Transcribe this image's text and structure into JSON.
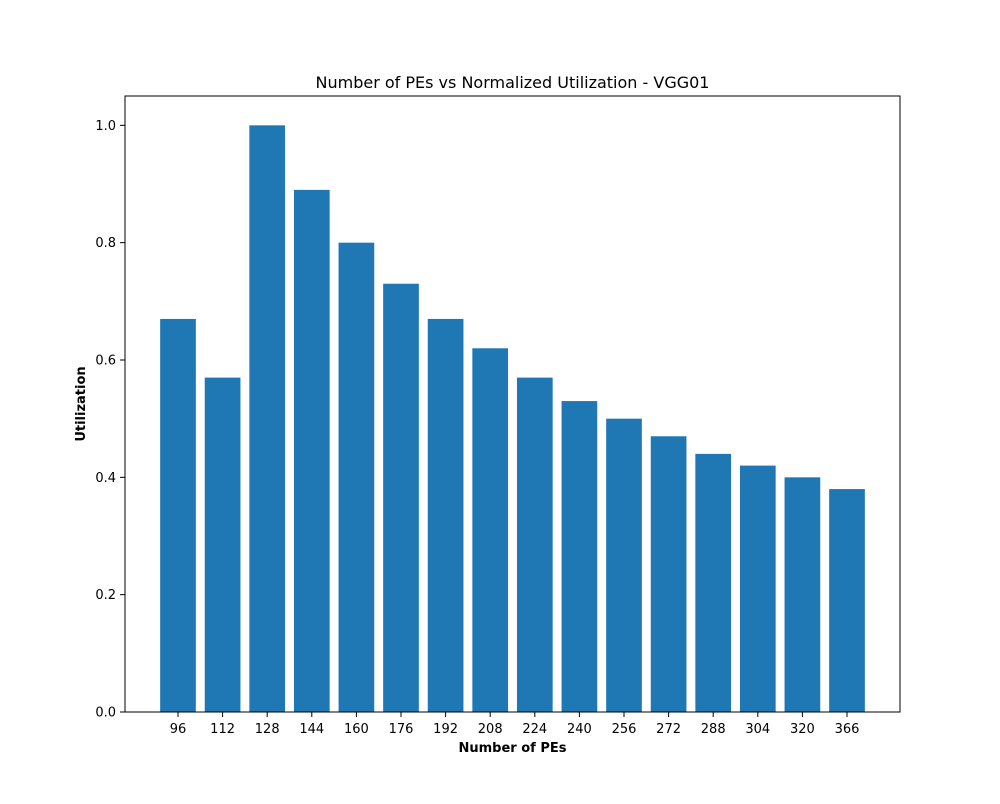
{
  "chart_data": {
    "type": "bar",
    "title": "Number of PEs vs Normalized Utilization - VGG01",
    "xlabel": "Number of PEs",
    "ylabel": "Utilization",
    "categories": [
      "96",
      "112",
      "128",
      "144",
      "160",
      "176",
      "192",
      "208",
      "224",
      "240",
      "256",
      "272",
      "288",
      "304",
      "320",
      "366"
    ],
    "values": [
      0.67,
      0.57,
      1.0,
      0.89,
      0.8,
      0.73,
      0.67,
      0.62,
      0.57,
      0.53,
      0.5,
      0.47,
      0.44,
      0.42,
      0.4,
      0.38
    ],
    "ylim": [
      0,
      1.05
    ],
    "yticks": [
      "0.0",
      "0.2",
      "0.4",
      "0.6",
      "0.8",
      "1.0"
    ],
    "grid": false,
    "legend": "none",
    "bar_color": "#1f77b4"
  }
}
